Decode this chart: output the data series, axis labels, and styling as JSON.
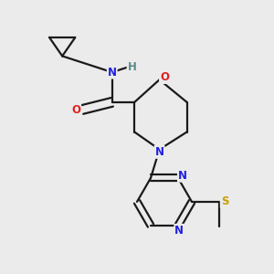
{
  "background_color": "#ebebeb",
  "bond_color": "#1a1a1a",
  "atom_colors": {
    "N": "#2020e0",
    "O": "#e02020",
    "S": "#c8a000",
    "H": "#5a8a8a",
    "C": "#1a1a1a"
  },
  "bond_lw": 1.6,
  "font_size_atoms": 8.5,
  "figsize": [
    3.0,
    3.0
  ],
  "dpi": 100
}
